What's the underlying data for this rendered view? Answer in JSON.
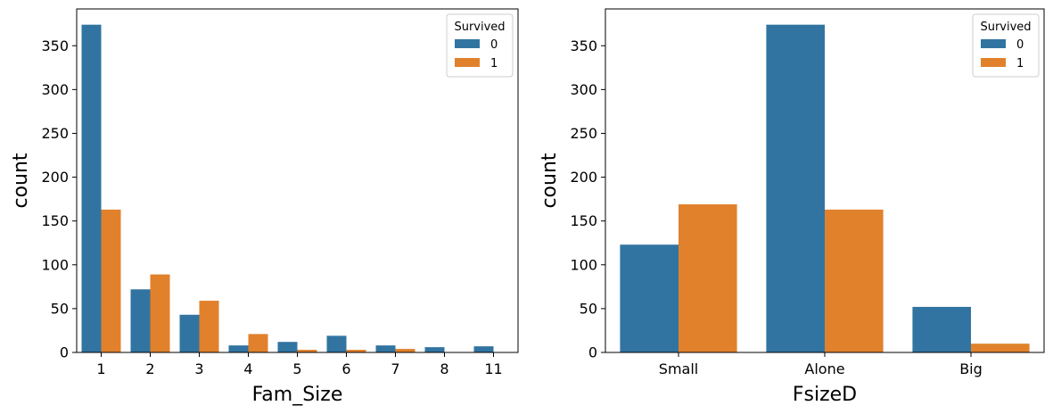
{
  "colors": {
    "0": "#3274a1",
    "1": "#e1812c"
  },
  "chart_data": [
    {
      "type": "bar",
      "categories": [
        "1",
        "2",
        "3",
        "4",
        "5",
        "6",
        "7",
        "8",
        "11"
      ],
      "series": [
        {
          "name": "0",
          "values": [
            374,
            72,
            43,
            8,
            12,
            19,
            8,
            6,
            7
          ]
        },
        {
          "name": "1",
          "values": [
            163,
            89,
            59,
            21,
            3,
            3,
            4,
            0,
            0
          ]
        }
      ],
      "xlabel": "Fam_Size",
      "ylabel": "count",
      "ylim": [
        0,
        392
      ],
      "yticks": [
        0,
        50,
        100,
        150,
        200,
        250,
        300,
        350
      ],
      "legend": {
        "title": "Survived",
        "entries": [
          "0",
          "1"
        ],
        "placement": "top-right"
      }
    },
    {
      "type": "bar",
      "categories": [
        "Small",
        "Alone",
        "Big"
      ],
      "series": [
        {
          "name": "0",
          "values": [
            123,
            374,
            52
          ]
        },
        {
          "name": "1",
          "values": [
            169,
            163,
            10
          ]
        }
      ],
      "xlabel": "FsizeD",
      "ylabel": "count",
      "ylim": [
        0,
        392
      ],
      "yticks": [
        0,
        50,
        100,
        150,
        200,
        250,
        300,
        350
      ],
      "legend": {
        "title": "Survived",
        "entries": [
          "0",
          "1"
        ],
        "placement": "top-right"
      }
    }
  ]
}
